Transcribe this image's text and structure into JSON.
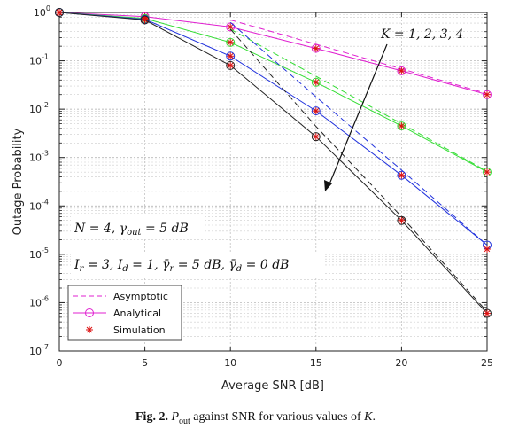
{
  "chart_data": {
    "type": "line",
    "xlabel": "Average SNR [dB]",
    "ylabel": "Outage Probability",
    "xlim": [
      0,
      25
    ],
    "ylim": [
      1e-07,
      1
    ],
    "yscale": "log",
    "grid": true,
    "x_ticks": [
      0,
      5,
      10,
      15,
      20,
      25
    ],
    "x_tick_labels": [
      "0",
      "5",
      "10",
      "15",
      "20",
      "25"
    ],
    "y_ticks": [
      1,
      0.1,
      0.01,
      0.001,
      0.0001,
      1e-05,
      1e-06,
      1e-07
    ],
    "y_tick_labels": [
      {
        "base": "10",
        "exp": "0"
      },
      {
        "base": "10",
        "exp": "-1"
      },
      {
        "base": "10",
        "exp": "-2"
      },
      {
        "base": "10",
        "exp": "-3"
      },
      {
        "base": "10",
        "exp": "-4"
      },
      {
        "base": "10",
        "exp": "-5"
      },
      {
        "base": "10",
        "exp": "-6"
      },
      {
        "base": "10",
        "exp": "-7"
      }
    ],
    "x": [
      0,
      5,
      10,
      15,
      20,
      25
    ],
    "series": [
      {
        "K": 1,
        "color": "#e020d0",
        "analytical": [
          1.0,
          0.82,
          0.5,
          0.18,
          0.062,
          0.02
        ],
        "simulation": [
          1.0,
          0.82,
          0.5,
          0.18,
          0.062,
          0.02
        ],
        "asymptotic_x": [
          10,
          15,
          20,
          25
        ],
        "asymptotic": [
          0.7,
          0.22,
          0.068,
          0.021
        ]
      },
      {
        "K": 2,
        "color": "#33dd33",
        "analytical": [
          1.0,
          0.75,
          0.24,
          0.036,
          0.0045,
          0.0005
        ],
        "simulation": [
          1.0,
          0.75,
          0.24,
          0.036,
          0.0045,
          0.0005
        ],
        "asymptotic_x": [
          10,
          15,
          20,
          25
        ],
        "asymptotic": [
          0.45,
          0.048,
          0.005,
          0.00052
        ]
      },
      {
        "K": 3,
        "color": "#2233dd",
        "analytical": [
          1.0,
          0.72,
          0.125,
          0.0092,
          0.00043,
          1.55e-05
        ],
        "simulation": [
          1.0,
          0.72,
          0.125,
          0.0092,
          0.00043,
          1.28e-05
        ],
        "asymptotic_x": [
          10,
          15,
          20,
          25
        ],
        "asymptotic": [
          0.62,
          0.018,
          0.00055,
          1.55e-05
        ]
      },
      {
        "K": 4,
        "color": "#222222",
        "analytical": [
          1.0,
          0.7,
          0.08,
          0.0027,
          5e-05,
          6e-07
        ],
        "simulation": [
          1.0,
          0.7,
          0.08,
          0.0027,
          5e-05,
          6e-07
        ],
        "asymptotic_x": [
          10,
          15,
          20,
          25
        ],
        "asymptotic": [
          0.45,
          0.0044,
          6e-05,
          6.5e-07
        ]
      }
    ],
    "annotations": {
      "k_label": "K = 1, 2, 3, 4",
      "params_line1": "N = 4, γ_out = 5 dB",
      "params_line2": "I_r = 3, I_d = 1, γ̄_r^I = 5 dB, γ̄_d^I = 0 dB"
    },
    "legend": {
      "position": "bottom-left",
      "entries": [
        {
          "label": "Asymptotic",
          "style": "dashed",
          "color": "#e020d0"
        },
        {
          "label": "Analytical",
          "style": "line-circle",
          "color": "#e020d0"
        },
        {
          "label": "Simulation",
          "style": "asterisk",
          "color": "#dd1111"
        }
      ]
    }
  },
  "caption": {
    "prefix": "Fig. 2.",
    "p_sym": "P",
    "p_sub": "out",
    "middle": "against SNR for various values of",
    "k_sym": "K",
    "end": "."
  }
}
